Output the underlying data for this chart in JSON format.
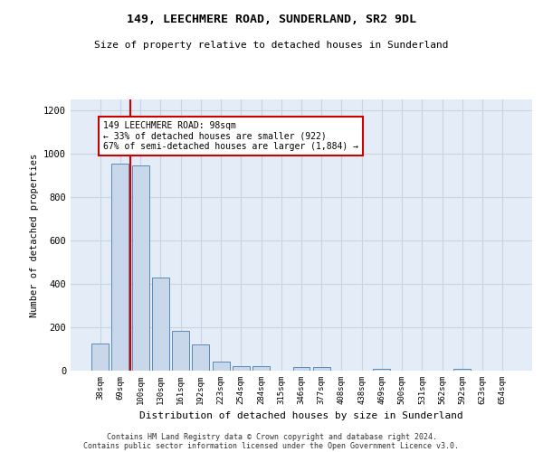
{
  "title": "149, LEECHMERE ROAD, SUNDERLAND, SR2 9DL",
  "subtitle": "Size of property relative to detached houses in Sunderland",
  "xlabel": "Distribution of detached houses by size in Sunderland",
  "ylabel": "Number of detached properties",
  "categories": [
    "38sqm",
    "69sqm",
    "100sqm",
    "130sqm",
    "161sqm",
    "192sqm",
    "223sqm",
    "254sqm",
    "284sqm",
    "315sqm",
    "346sqm",
    "377sqm",
    "408sqm",
    "438sqm",
    "469sqm",
    "500sqm",
    "531sqm",
    "562sqm",
    "592sqm",
    "623sqm",
    "654sqm"
  ],
  "values": [
    125,
    955,
    945,
    430,
    185,
    120,
    40,
    20,
    20,
    0,
    15,
    15,
    0,
    0,
    10,
    0,
    0,
    0,
    10,
    0,
    0
  ],
  "bar_color": "#c8d8ea",
  "bar_edge_color": "#5a8ab5",
  "annotation_title": "149 LEECHMERE ROAD: 98sqm",
  "annotation_line1": "← 33% of detached houses are smaller (922)",
  "annotation_line2": "67% of semi-detached houses are larger (1,884) →",
  "annotation_box_color": "#ffffff",
  "annotation_box_edge": "#cc0000",
  "vline_color": "#cc0000",
  "ylim": [
    0,
    1250
  ],
  "yticks": [
    0,
    200,
    400,
    600,
    800,
    1000,
    1200
  ],
  "grid_color": "#c8d4e4",
  "bg_color": "#e4ecf7",
  "footer1": "Contains HM Land Registry data © Crown copyright and database right 2024.",
  "footer2": "Contains public sector information licensed under the Open Government Licence v3.0."
}
